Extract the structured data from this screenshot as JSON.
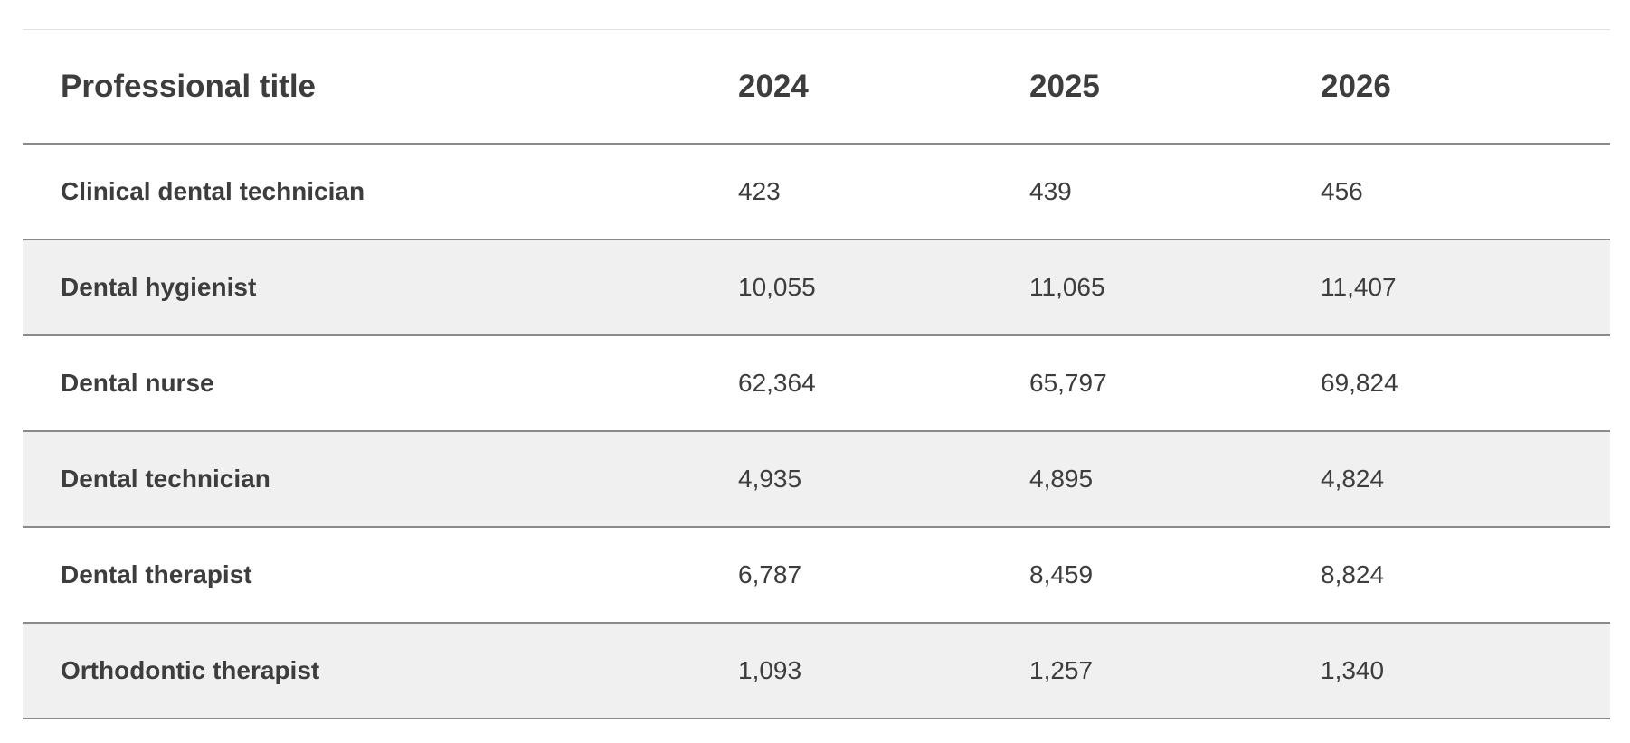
{
  "table": {
    "headers": {
      "title": "Professional title",
      "y2024": "2024",
      "y2025": "2025",
      "y2026": "2026"
    },
    "rows": [
      {
        "title": "Clinical dental technician",
        "y2024": "423",
        "y2025": "439",
        "y2026": "456"
      },
      {
        "title": "Dental hygienist",
        "y2024": "10,055",
        "y2025": "11,065",
        "y2026": "11,407"
      },
      {
        "title": "Dental nurse",
        "y2024": "62,364",
        "y2025": "65,797",
        "y2026": "69,824"
      },
      {
        "title": "Dental technician",
        "y2024": "4,935",
        "y2025": "4,895",
        "y2026": "4,824"
      },
      {
        "title": "Dental therapist",
        "y2024": "6,787",
        "y2025": "8,459",
        "y2026": "8,824"
      },
      {
        "title": "Orthodontic therapist",
        "y2024": "1,093",
        "y2025": "1,257",
        "y2026": "1,340"
      }
    ]
  },
  "colors": {
    "text": "#3d3d3d",
    "row_shade": "#f0f0f0",
    "rule": "#8a8a8a"
  }
}
